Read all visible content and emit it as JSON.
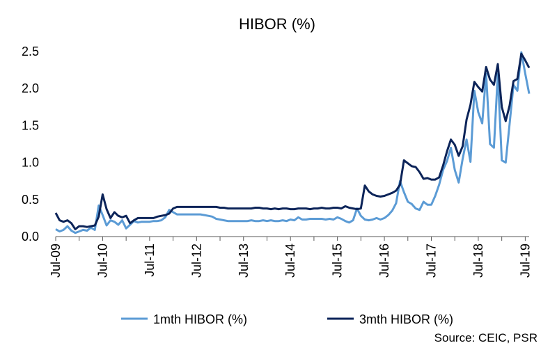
{
  "chart_data": {
    "type": "line",
    "title": "HIBOR (%)",
    "xlabel": "",
    "ylabel": "",
    "ylim": [
      0,
      2.5
    ],
    "yticks": [
      "0.0",
      "0.5",
      "1.0",
      "1.5",
      "2.0",
      "2.5"
    ],
    "xlim": [
      "2009-07",
      "2019-08"
    ],
    "xticks": [
      {
        "label": "Jul-09",
        "date": "2009-07"
      },
      {
        "label": "Jul-10",
        "date": "2010-07"
      },
      {
        "label": "Jul-11",
        "date": "2011-07"
      },
      {
        "label": "Jul-12",
        "date": "2012-07"
      },
      {
        "label": "Jul-13",
        "date": "2013-07"
      },
      {
        "label": "Jul-14",
        "date": "2014-07"
      },
      {
        "label": "Jul-15",
        "date": "2015-07"
      },
      {
        "label": "Jul-16",
        "date": "2016-07"
      },
      {
        "label": "Jul-17",
        "date": "2017-07"
      },
      {
        "label": "Jul-18",
        "date": "2018-07"
      },
      {
        "label": "Jul-19",
        "date": "2019-07"
      }
    ],
    "legend_position": "bottom",
    "grid": false,
    "series": [
      {
        "name": "1mth HIBOR (%)",
        "color": "#5b9bd5",
        "points": [
          [
            "2009-07",
            0.1
          ],
          [
            "2009-08",
            0.07
          ],
          [
            "2009-09",
            0.09
          ],
          [
            "2009-10",
            0.14
          ],
          [
            "2009-11",
            0.08
          ],
          [
            "2009-12",
            0.05
          ],
          [
            "2010-01",
            0.07
          ],
          [
            "2010-02",
            0.09
          ],
          [
            "2010-03",
            0.08
          ],
          [
            "2010-04",
            0.12
          ],
          [
            "2010-05",
            0.09
          ],
          [
            "2010-06",
            0.42
          ],
          [
            "2010-07",
            0.29
          ],
          [
            "2010-08",
            0.15
          ],
          [
            "2010-09",
            0.22
          ],
          [
            "2010-10",
            0.2
          ],
          [
            "2010-11",
            0.16
          ],
          [
            "2010-12",
            0.22
          ],
          [
            "2011-01",
            0.11
          ],
          [
            "2011-02",
            0.16
          ],
          [
            "2011-03",
            0.21
          ],
          [
            "2011-04",
            0.19
          ],
          [
            "2011-05",
            0.2
          ],
          [
            "2011-06",
            0.2
          ],
          [
            "2011-07",
            0.2
          ],
          [
            "2011-08",
            0.21
          ],
          [
            "2011-09",
            0.21
          ],
          [
            "2011-10",
            0.22
          ],
          [
            "2011-11",
            0.26
          ],
          [
            "2011-12",
            0.36
          ],
          [
            "2012-01",
            0.33
          ],
          [
            "2012-02",
            0.3
          ],
          [
            "2012-03",
            0.3
          ],
          [
            "2012-04",
            0.3
          ],
          [
            "2012-05",
            0.3
          ],
          [
            "2012-06",
            0.3
          ],
          [
            "2012-07",
            0.3
          ],
          [
            "2012-08",
            0.3
          ],
          [
            "2012-09",
            0.29
          ],
          [
            "2012-10",
            0.28
          ],
          [
            "2012-11",
            0.27
          ],
          [
            "2012-12",
            0.24
          ],
          [
            "2013-01",
            0.23
          ],
          [
            "2013-02",
            0.22
          ],
          [
            "2013-03",
            0.21
          ],
          [
            "2013-04",
            0.21
          ],
          [
            "2013-05",
            0.21
          ],
          [
            "2013-06",
            0.21
          ],
          [
            "2013-07",
            0.21
          ],
          [
            "2013-08",
            0.21
          ],
          [
            "2013-09",
            0.22
          ],
          [
            "2013-10",
            0.21
          ],
          [
            "2013-11",
            0.21
          ],
          [
            "2013-12",
            0.22
          ],
          [
            "2014-01",
            0.21
          ],
          [
            "2014-02",
            0.22
          ],
          [
            "2014-03",
            0.21
          ],
          [
            "2014-04",
            0.21
          ],
          [
            "2014-05",
            0.22
          ],
          [
            "2014-06",
            0.21
          ],
          [
            "2014-07",
            0.23
          ],
          [
            "2014-08",
            0.22
          ],
          [
            "2014-09",
            0.26
          ],
          [
            "2014-10",
            0.23
          ],
          [
            "2014-11",
            0.23
          ],
          [
            "2014-12",
            0.24
          ],
          [
            "2015-01",
            0.24
          ],
          [
            "2015-02",
            0.24
          ],
          [
            "2015-03",
            0.24
          ],
          [
            "2015-04",
            0.23
          ],
          [
            "2015-05",
            0.24
          ],
          [
            "2015-06",
            0.23
          ],
          [
            "2015-07",
            0.26
          ],
          [
            "2015-08",
            0.24
          ],
          [
            "2015-09",
            0.21
          ],
          [
            "2015-10",
            0.19
          ],
          [
            "2015-11",
            0.22
          ],
          [
            "2015-12",
            0.38
          ],
          [
            "2016-01",
            0.28
          ],
          [
            "2016-02",
            0.23
          ],
          [
            "2016-03",
            0.22
          ],
          [
            "2016-04",
            0.23
          ],
          [
            "2016-05",
            0.25
          ],
          [
            "2016-06",
            0.23
          ],
          [
            "2016-07",
            0.25
          ],
          [
            "2016-08",
            0.29
          ],
          [
            "2016-09",
            0.35
          ],
          [
            "2016-10",
            0.45
          ],
          [
            "2016-11",
            0.75
          ],
          [
            "2016-12",
            0.6
          ],
          [
            "2017-01",
            0.47
          ],
          [
            "2017-02",
            0.44
          ],
          [
            "2017-03",
            0.38
          ],
          [
            "2017-04",
            0.36
          ],
          [
            "2017-05",
            0.47
          ],
          [
            "2017-06",
            0.43
          ],
          [
            "2017-07",
            0.43
          ],
          [
            "2017-08",
            0.55
          ],
          [
            "2017-09",
            0.7
          ],
          [
            "2017-10",
            0.9
          ],
          [
            "2017-11",
            1.02
          ],
          [
            "2017-12",
            1.2
          ],
          [
            "2018-01",
            0.9
          ],
          [
            "2018-02",
            0.73
          ],
          [
            "2018-03",
            1.05
          ],
          [
            "2018-04",
            1.31
          ],
          [
            "2018-05",
            1.01
          ],
          [
            "2018-06",
            1.97
          ],
          [
            "2018-07",
            1.68
          ],
          [
            "2018-08",
            1.53
          ],
          [
            "2018-09",
            2.2
          ],
          [
            "2018-10",
            1.25
          ],
          [
            "2018-11",
            1.2
          ],
          [
            "2018-12",
            2.2
          ],
          [
            "2019-01",
            1.03
          ],
          [
            "2019-02",
            1.0
          ],
          [
            "2019-03",
            1.52
          ],
          [
            "2019-04",
            2.05
          ],
          [
            "2019-05",
            1.97
          ],
          [
            "2019-06",
            2.49
          ],
          [
            "2019-07",
            2.2
          ],
          [
            "2019-08",
            1.93
          ]
        ]
      },
      {
        "name": "3mth HIBOR (%)",
        "color": "#0c2459",
        "points": [
          [
            "2009-07",
            0.32
          ],
          [
            "2009-08",
            0.22
          ],
          [
            "2009-09",
            0.2
          ],
          [
            "2009-10",
            0.22
          ],
          [
            "2009-11",
            0.18
          ],
          [
            "2009-12",
            0.1
          ],
          [
            "2010-01",
            0.14
          ],
          [
            "2010-02",
            0.14
          ],
          [
            "2010-03",
            0.13
          ],
          [
            "2010-04",
            0.14
          ],
          [
            "2010-05",
            0.15
          ],
          [
            "2010-06",
            0.27
          ],
          [
            "2010-07",
            0.57
          ],
          [
            "2010-08",
            0.37
          ],
          [
            "2010-09",
            0.25
          ],
          [
            "2010-10",
            0.33
          ],
          [
            "2010-11",
            0.28
          ],
          [
            "2010-12",
            0.26
          ],
          [
            "2011-01",
            0.28
          ],
          [
            "2011-02",
            0.18
          ],
          [
            "2011-03",
            0.22
          ],
          [
            "2011-04",
            0.25
          ],
          [
            "2011-05",
            0.25
          ],
          [
            "2011-06",
            0.25
          ],
          [
            "2011-07",
            0.25
          ],
          [
            "2011-08",
            0.25
          ],
          [
            "2011-09",
            0.27
          ],
          [
            "2011-10",
            0.28
          ],
          [
            "2011-11",
            0.29
          ],
          [
            "2011-12",
            0.31
          ],
          [
            "2012-01",
            0.38
          ],
          [
            "2012-02",
            0.4
          ],
          [
            "2012-03",
            0.4
          ],
          [
            "2012-04",
            0.4
          ],
          [
            "2012-05",
            0.4
          ],
          [
            "2012-06",
            0.4
          ],
          [
            "2012-07",
            0.4
          ],
          [
            "2012-08",
            0.4
          ],
          [
            "2012-09",
            0.4
          ],
          [
            "2012-10",
            0.4
          ],
          [
            "2012-11",
            0.4
          ],
          [
            "2012-12",
            0.4
          ],
          [
            "2013-01",
            0.39
          ],
          [
            "2013-02",
            0.39
          ],
          [
            "2013-03",
            0.38
          ],
          [
            "2013-04",
            0.38
          ],
          [
            "2013-05",
            0.38
          ],
          [
            "2013-06",
            0.38
          ],
          [
            "2013-07",
            0.38
          ],
          [
            "2013-08",
            0.38
          ],
          [
            "2013-09",
            0.38
          ],
          [
            "2013-10",
            0.39
          ],
          [
            "2013-11",
            0.39
          ],
          [
            "2013-12",
            0.38
          ],
          [
            "2014-01",
            0.38
          ],
          [
            "2014-02",
            0.37
          ],
          [
            "2014-03",
            0.38
          ],
          [
            "2014-04",
            0.37
          ],
          [
            "2014-05",
            0.38
          ],
          [
            "2014-06",
            0.38
          ],
          [
            "2014-07",
            0.37
          ],
          [
            "2014-08",
            0.37
          ],
          [
            "2014-09",
            0.38
          ],
          [
            "2014-10",
            0.38
          ],
          [
            "2014-11",
            0.38
          ],
          [
            "2014-12",
            0.37
          ],
          [
            "2015-01",
            0.38
          ],
          [
            "2015-02",
            0.38
          ],
          [
            "2015-03",
            0.39
          ],
          [
            "2015-04",
            0.38
          ],
          [
            "2015-05",
            0.38
          ],
          [
            "2015-06",
            0.39
          ],
          [
            "2015-07",
            0.39
          ],
          [
            "2015-08",
            0.38
          ],
          [
            "2015-09",
            0.41
          ],
          [
            "2015-10",
            0.39
          ],
          [
            "2015-11",
            0.38
          ],
          [
            "2015-12",
            0.37
          ],
          [
            "2016-01",
            0.38
          ],
          [
            "2016-02",
            0.69
          ],
          [
            "2016-03",
            0.61
          ],
          [
            "2016-04",
            0.57
          ],
          [
            "2016-05",
            0.55
          ],
          [
            "2016-06",
            0.54
          ],
          [
            "2016-07",
            0.55
          ],
          [
            "2016-08",
            0.57
          ],
          [
            "2016-09",
            0.59
          ],
          [
            "2016-10",
            0.62
          ],
          [
            "2016-11",
            0.7
          ],
          [
            "2016-12",
            1.03
          ],
          [
            "2017-01",
            0.99
          ],
          [
            "2017-02",
            0.95
          ],
          [
            "2017-03",
            0.94
          ],
          [
            "2017-04",
            0.87
          ],
          [
            "2017-05",
            0.78
          ],
          [
            "2017-06",
            0.79
          ],
          [
            "2017-07",
            0.77
          ],
          [
            "2017-08",
            0.77
          ],
          [
            "2017-09",
            0.8
          ],
          [
            "2017-10",
            0.96
          ],
          [
            "2017-11",
            1.15
          ],
          [
            "2017-12",
            1.31
          ],
          [
            "2018-01",
            1.24
          ],
          [
            "2018-02",
            1.09
          ],
          [
            "2018-03",
            1.22
          ],
          [
            "2018-04",
            1.58
          ],
          [
            "2018-05",
            1.78
          ],
          [
            "2018-06",
            2.09
          ],
          [
            "2018-07",
            2.02
          ],
          [
            "2018-08",
            1.96
          ],
          [
            "2018-09",
            2.29
          ],
          [
            "2018-10",
            2.12
          ],
          [
            "2018-11",
            2.05
          ],
          [
            "2018-12",
            2.33
          ],
          [
            "2019-01",
            1.75
          ],
          [
            "2019-02",
            1.56
          ],
          [
            "2019-03",
            1.77
          ],
          [
            "2019-04",
            2.1
          ],
          [
            "2019-05",
            2.13
          ],
          [
            "2019-06",
            2.47
          ],
          [
            "2019-07",
            2.38
          ],
          [
            "2019-08",
            2.28
          ]
        ]
      }
    ]
  },
  "source_note": "Source: CEIC, PSR"
}
